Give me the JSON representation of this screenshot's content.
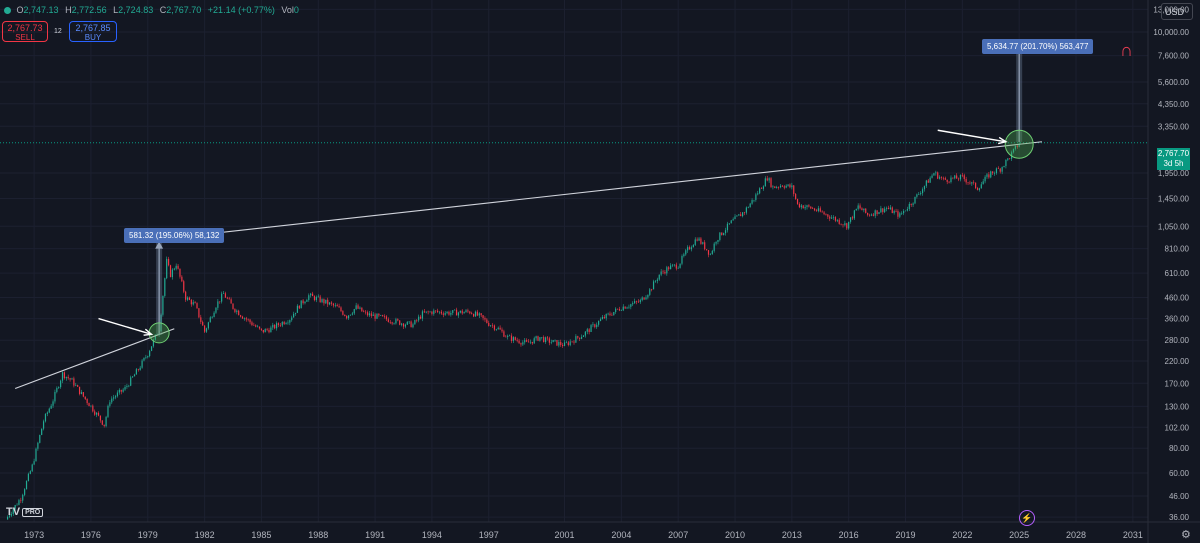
{
  "ohlc": {
    "o_label": "O",
    "o_value": "2,747.13",
    "h_label": "H",
    "h_value": "2,772.56",
    "l_label": "L",
    "l_value": "2,724.83",
    "c_label": "C",
    "c_value": "2,767.70",
    "change": "+21.14 (+0.77%)",
    "vol_label": "Vol",
    "vol_value": "0"
  },
  "trade": {
    "sell_price": "2,767.73",
    "sell_label": "SELL",
    "spread": "12",
    "buy_price": "2,767.85",
    "buy_label": "BUY"
  },
  "currency": "USD",
  "last_price": {
    "value": "2,767.70",
    "countdown": "3d 5h"
  },
  "measures": [
    {
      "text": "581.32 (195.06%) 58,132"
    },
    {
      "text": "5,634.77 (201.70%) 563,477"
    }
  ],
  "logo": {
    "text": "TV",
    "badge": "PRO"
  },
  "icons": {
    "magnet": "magnet-icon",
    "settings": "gear-icon",
    "lightning": "lightning-icon",
    "status": "status-dot-icon"
  },
  "colors": {
    "background": "#131722",
    "up": "#22ab94",
    "down": "#f23645",
    "last_price": "#089981",
    "measure": "#4a6fb8"
  },
  "chart_data": {
    "type": "candlestick",
    "y_scale": "log",
    "ylim": [
      34,
      14500
    ],
    "xlim": [
      1971.2,
      2031.8
    ],
    "x_ticks": [
      1973,
      1976,
      1979,
      1982,
      1985,
      1988,
      1991,
      1994,
      1997,
      2001,
      2004,
      2007,
      2010,
      2013,
      2016,
      2019,
      2022,
      2025,
      2028,
      2031
    ],
    "y_ticks": [
      13000,
      10000,
      7600,
      5600,
      4350,
      3350,
      1950,
      1450,
      1050,
      810,
      610,
      460,
      360,
      280,
      220,
      170,
      130,
      102,
      80,
      60,
      46,
      36
    ],
    "y_tick_labels": [
      "13,000.00",
      "10,000.00",
      "7,600.00",
      "5,600.00",
      "4,350.00",
      "3,350.00",
      "1,950.00",
      "1,450.00",
      "1,050.00",
      "810.00",
      "610.00",
      "460.00",
      "360.00",
      "280.00",
      "220.00",
      "170.00",
      "130.00",
      "102.00",
      "80.00",
      "60.00",
      "46.00",
      "36.00"
    ],
    "price_path": [
      [
        1971.5,
        35
      ],
      [
        1972.3,
        45
      ],
      [
        1972.9,
        65
      ],
      [
        1973.5,
        110
      ],
      [
        1974.0,
        140
      ],
      [
        1974.5,
        190
      ],
      [
        1975.0,
        175
      ],
      [
        1975.5,
        150
      ],
      [
        1976.0,
        130
      ],
      [
        1976.7,
        105
      ],
      [
        1977.0,
        140
      ],
      [
        1977.8,
        160
      ],
      [
        1978.5,
        200
      ],
      [
        1979.0,
        240
      ],
      [
        1979.6,
        320
      ],
      [
        1980.0,
        700
      ],
      [
        1980.2,
        600
      ],
      [
        1980.5,
        680
      ],
      [
        1981.0,
        460
      ],
      [
        1981.5,
        420
      ],
      [
        1982.0,
        310
      ],
      [
        1982.6,
        420
      ],
      [
        1983.0,
        480
      ],
      [
        1983.5,
        410
      ],
      [
        1984.0,
        370
      ],
      [
        1984.5,
        340
      ],
      [
        1985.0,
        310
      ],
      [
        1985.5,
        320
      ],
      [
        1986.0,
        340
      ],
      [
        1986.5,
        360
      ],
      [
        1987.0,
        420
      ],
      [
        1987.5,
        470
      ],
      [
        1988.0,
        450
      ],
      [
        1988.5,
        430
      ],
      [
        1989.0,
        410
      ],
      [
        1989.5,
        370
      ],
      [
        1990.0,
        410
      ],
      [
        1990.5,
        380
      ],
      [
        1991.0,
        370
      ],
      [
        1991.5,
        360
      ],
      [
        1992.0,
        350
      ],
      [
        1992.5,
        340
      ],
      [
        1993.0,
        335
      ],
      [
        1993.5,
        380
      ],
      [
        1994.0,
        390
      ],
      [
        1995.0,
        385
      ],
      [
        1996.0,
        390
      ],
      [
        1996.5,
        370
      ],
      [
        1997.0,
        340
      ],
      [
        1997.5,
        320
      ],
      [
        1998.0,
        290
      ],
      [
        1999.0,
        270
      ],
      [
        1999.7,
        290
      ],
      [
        2000.0,
        280
      ],
      [
        2001.0,
        265
      ],
      [
        2002.0,
        300
      ],
      [
        2003.0,
        360
      ],
      [
        2004.0,
        410
      ],
      [
        2005.0,
        440
      ],
      [
        2005.5,
        500
      ],
      [
        2006.0,
        600
      ],
      [
        2006.5,
        650
      ],
      [
        2007.0,
        670
      ],
      [
        2007.5,
        800
      ],
      [
        2008.0,
        920
      ],
      [
        2008.7,
        760
      ],
      [
        2009.0,
        900
      ],
      [
        2009.8,
        1100
      ],
      [
        2010.5,
        1250
      ],
      [
        2011.0,
        1450
      ],
      [
        2011.7,
        1850
      ],
      [
        2012.0,
        1650
      ],
      [
        2012.5,
        1700
      ],
      [
        2013.0,
        1650
      ],
      [
        2013.3,
        1350
      ],
      [
        2014.0,
        1300
      ],
      [
        2015.0,
        1180
      ],
      [
        2015.9,
        1060
      ],
      [
        2016.5,
        1320
      ],
      [
        2017.0,
        1200
      ],
      [
        2018.0,
        1300
      ],
      [
        2018.7,
        1190
      ],
      [
        2019.5,
        1450
      ],
      [
        2020.5,
        1950
      ],
      [
        2021.0,
        1800
      ],
      [
        2022.0,
        1850
      ],
      [
        2022.8,
        1640
      ],
      [
        2023.5,
        1950
      ],
      [
        2024.0,
        2050
      ],
      [
        2024.5,
        2350
      ],
      [
        2025.0,
        2767.7
      ]
    ],
    "trendlines": [
      {
        "from": [
          1972.0,
          160
        ],
        "to": [
          1980.4,
          320
        ]
      },
      {
        "from": [
          1979.0,
          890
        ],
        "to": [
          2026.2,
          2800
        ]
      }
    ],
    "arrows": [
      {
        "from": [
          1976.4,
          360
        ],
        "to": [
          1979.2,
          300
        ]
      },
      {
        "from": [
          2020.7,
          3200
        ],
        "to": [
          2024.3,
          2800
        ]
      }
    ],
    "breakout_circles": [
      {
        "at": [
          1979.6,
          305
        ]
      },
      {
        "at": [
          2025.0,
          2720
        ]
      }
    ],
    "measure_ranges": [
      {
        "x": 1979.6,
        "from": 298,
        "to": 879
      },
      {
        "x": 2025.0,
        "from": 2794,
        "to": 8429
      }
    ],
    "last_price": 2767.7
  }
}
